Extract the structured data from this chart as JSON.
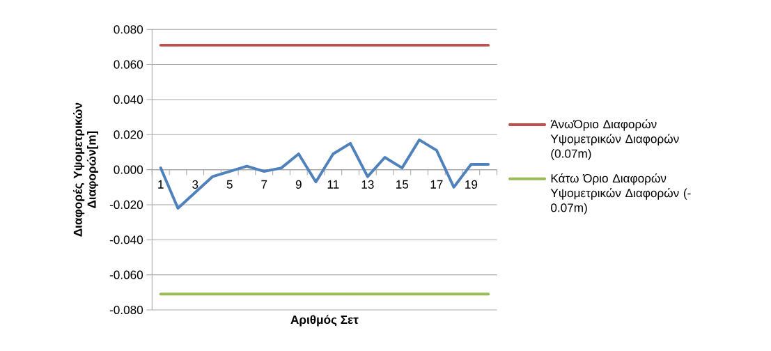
{
  "chart_data": {
    "type": "line",
    "xlabel": "Αριθμός Σετ",
    "ylabel": "Διαφορές Υψομετρικών Διαφορών[m]",
    "categories": [
      "1",
      null,
      "3",
      null,
      "5",
      null,
      "7",
      null,
      "9",
      null,
      "11",
      null,
      "13",
      null,
      "15",
      null,
      "17",
      null,
      "19",
      null
    ],
    "series": [
      {
        "color": "#4f81bd",
        "values": [
          0.001,
          -0.022,
          -0.013,
          -0.004,
          -0.001,
          0.002,
          -0.001,
          0.001,
          0.009,
          -0.007,
          0.009,
          0.015,
          -0.004,
          0.007,
          0.001,
          0.017,
          0.011,
          -0.01,
          0.003,
          0.003
        ]
      },
      {
        "name": "ΆνωΌριο Διαφορών Υψομετρικών Διαφορών (0.07m)",
        "color": "#c0504d",
        "values": [
          0.071,
          0.071,
          0.071,
          0.071,
          0.071,
          0.071,
          0.071,
          0.071,
          0.071,
          0.071,
          0.071,
          0.071,
          0.071,
          0.071,
          0.071,
          0.071,
          0.071,
          0.071,
          0.071,
          0.071
        ]
      },
      {
        "name": "Κάτω Όριο Διαφορών Υψομετρικών Διαφορών (-0.07m)",
        "color": "#9bbb59",
        "values": [
          -0.071,
          -0.071,
          -0.071,
          -0.071,
          -0.071,
          -0.071,
          -0.071,
          -0.071,
          -0.071,
          -0.071,
          -0.071,
          -0.071,
          -0.071,
          -0.071,
          -0.071,
          -0.071,
          -0.071,
          -0.071,
          -0.071,
          -0.071
        ]
      }
    ],
    "ylim": [
      -0.08,
      0.08
    ],
    "yticks": [
      {
        "value": -0.08,
        "label": "-0.080"
      },
      {
        "value": -0.06,
        "label": "-0.060"
      },
      {
        "value": -0.04,
        "label": "-0.040"
      },
      {
        "value": -0.02,
        "label": "-0.020"
      },
      {
        "value": 0,
        "label": "0.000"
      },
      {
        "value": 0.02,
        "label": "0.020"
      },
      {
        "value": 0.04,
        "label": "0.040"
      },
      {
        "value": 0.06,
        "label": "0.060"
      },
      {
        "value": 0.08,
        "label": "0.080"
      }
    ],
    "grid": "y",
    "legend": "right"
  }
}
